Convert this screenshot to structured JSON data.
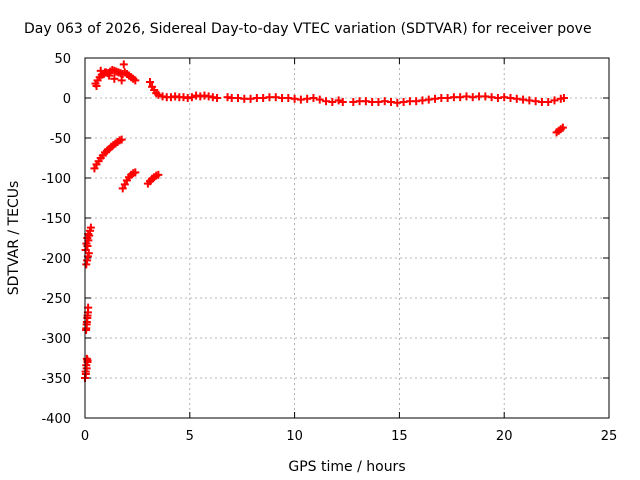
{
  "chart_data": {
    "type": "scatter",
    "title": "Day 063 of 2026, Sidereal Day-to-day VTEC variation (SDTVAR) for receiver pove",
    "xlabel": "GPS time / hours",
    "ylabel": "SDTVAR / TECUs",
    "xlim": [
      0,
      25
    ],
    "ylim": [
      -400,
      50
    ],
    "xticks": [
      0,
      5,
      10,
      15,
      20,
      25
    ],
    "yticks": [
      50,
      0,
      -50,
      -100,
      -150,
      -200,
      -250,
      -300,
      -350,
      -400
    ],
    "xtick_labels": [
      "0",
      "5",
      "10",
      "15",
      "20",
      "25"
    ],
    "ytick_labels": [
      "50",
      "0",
      "-50",
      "-100",
      "-150",
      "-200",
      "-250",
      "-300",
      "-350",
      "-400"
    ],
    "grid": true,
    "marker": "plus",
    "color": "#ff0000",
    "series": [
      {
        "x": [
          0.0,
          0.03,
          0.06,
          0.09,
          0.12,
          0.05,
          0.08,
          0.11,
          0.14,
          0.06,
          0.09,
          0.12,
          0.15,
          0.12,
          0.16,
          0.2,
          0.24,
          0.28,
          0.06,
          0.1,
          0.14,
          0.18,
          0.03,
          0.07,
          0.11,
          0.15,
          0.0,
          0.04,
          0.08,
          0.12,
          0.45,
          0.55,
          0.65,
          0.75,
          0.85,
          0.95,
          1.05,
          1.15,
          1.25,
          1.35,
          1.45,
          1.55,
          1.65,
          1.75,
          0.5,
          0.6,
          0.7,
          0.8,
          0.9,
          1.0,
          1.1,
          1.2,
          1.3,
          1.4,
          1.5,
          1.6,
          1.7,
          1.8,
          1.9,
          2.0,
          2.1,
          2.2,
          2.3,
          2.4,
          0.55,
          0.75,
          0.95,
          1.15,
          1.4,
          1.75,
          1.85,
          1.8,
          1.9,
          2.0,
          2.1,
          2.2,
          2.3,
          2.4,
          3.0,
          3.1,
          3.2,
          3.3,
          3.4,
          3.5,
          3.1,
          3.2,
          3.3,
          3.4,
          3.5,
          3.7,
          3.9,
          4.1,
          4.3,
          4.5,
          4.7,
          4.9,
          5.1,
          5.3,
          5.5,
          5.7,
          5.9,
          6.1,
          6.3,
          6.8,
          7.0,
          7.3,
          7.6,
          7.9,
          8.2,
          8.5,
          8.8,
          9.1,
          9.4,
          9.7,
          10.0,
          10.3,
          10.6,
          10.9,
          11.2,
          11.5,
          11.8,
          12.1,
          12.3,
          12.8,
          13.1,
          13.4,
          13.7,
          14.0,
          14.3,
          14.6,
          14.9,
          15.2,
          15.5,
          15.8,
          16.1,
          16.4,
          16.7,
          17.0,
          17.3,
          17.6,
          17.9,
          18.2,
          18.5,
          18.8,
          19.1,
          19.4,
          19.7,
          20.0,
          20.3,
          20.6,
          20.9,
          21.2,
          21.5,
          21.8,
          22.1,
          22.4,
          22.7,
          22.85,
          22.5,
          22.6,
          22.7,
          22.8
        ],
        "y": [
          -350,
          -342,
          -334,
          -326,
          -328,
          -290,
          -283,
          -275,
          -268,
          -288,
          -280,
          -272,
          -262,
          -185,
          -178,
          -172,
          -166,
          -162,
          -208,
          -203,
          -198,
          -194,
          -190,
          -182,
          -175,
          -170,
          -350,
          -345,
          -338,
          -330,
          -88,
          -83,
          -79,
          -75,
          -72,
          -68,
          -66,
          -64,
          -61,
          -59,
          -57,
          -55,
          -53,
          -52,
          18,
          22,
          26,
          29,
          30,
          32,
          31,
          33,
          35,
          34,
          33,
          32,
          31,
          30,
          32,
          30,
          28,
          26,
          24,
          22,
          15,
          34,
          32,
          28,
          24,
          22,
          42,
          -113,
          -108,
          -103,
          -99,
          -96,
          -94,
          -93,
          -107,
          -104,
          -101,
          -99,
          -97,
          -96,
          20,
          14,
          10,
          6,
          4,
          2,
          1,
          1,
          2,
          1,
          1,
          0,
          1,
          3,
          2,
          3,
          2,
          1,
          0,
          1,
          0,
          0,
          -1,
          -1,
          0,
          0,
          1,
          1,
          0,
          0,
          -1,
          -2,
          -1,
          0,
          -2,
          -4,
          -5,
          -3,
          -5,
          -5,
          -4,
          -4,
          -5,
          -5,
          -4,
          -5,
          -6,
          -5,
          -4,
          -4,
          -3,
          -2,
          -1,
          0,
          0,
          1,
          1,
          2,
          1,
          2,
          2,
          1,
          0,
          1,
          0,
          -1,
          -2,
          -3,
          -4,
          -5,
          -5,
          -3,
          -1,
          0,
          -43,
          -41,
          -39,
          -37
        ]
      }
    ]
  }
}
